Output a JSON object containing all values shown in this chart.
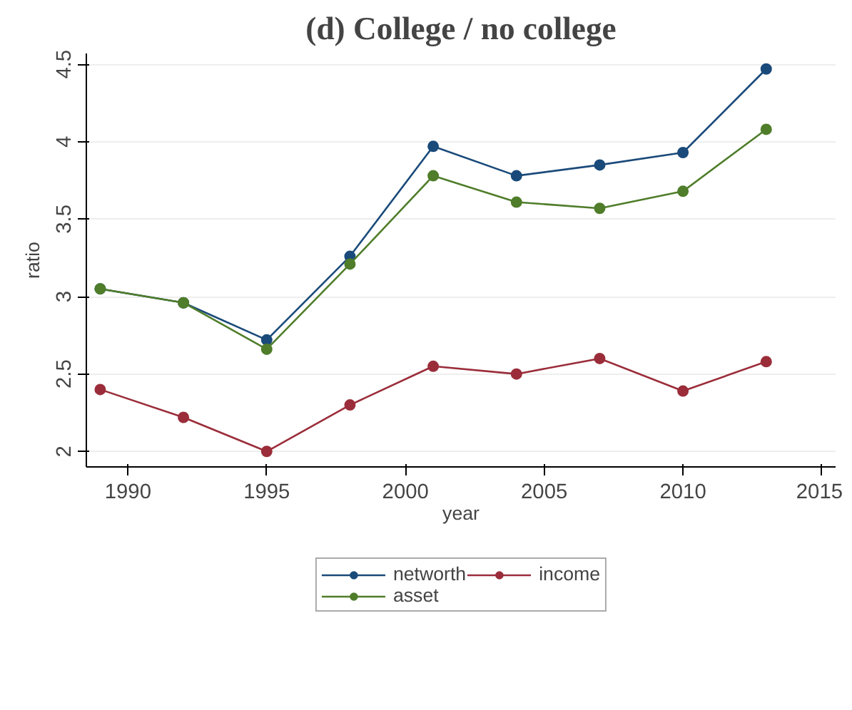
{
  "chart_data": {
    "type": "line",
    "title": "(d) College / no college",
    "xlabel": "year",
    "ylabel": "ratio",
    "x": [
      1989,
      1992,
      1995,
      1998,
      2001,
      2004,
      2007,
      2010,
      2013
    ],
    "series": [
      {
        "name": "networth",
        "color": "#1a4a7a",
        "values": [
          3.05,
          2.96,
          2.72,
          3.26,
          3.97,
          3.78,
          3.85,
          3.93,
          4.47
        ]
      },
      {
        "name": "income",
        "color": "#9b2d3a",
        "values": [
          2.4,
          2.22,
          2.0,
          2.3,
          2.55,
          2.5,
          2.6,
          2.39,
          2.58
        ]
      },
      {
        "name": "asset",
        "color": "#4f7d2a",
        "values": [
          3.05,
          2.96,
          2.66,
          3.21,
          3.78,
          3.61,
          3.57,
          3.68,
          4.08
        ]
      }
    ],
    "xlim": [
      1988.5,
      2015.5
    ],
    "ylim": [
      1.9,
      4.57
    ],
    "xticks": [
      1990,
      1995,
      2000,
      2005,
      2010,
      2015
    ],
    "yticks": [
      2,
      2.5,
      3,
      3.5,
      4,
      4.5
    ],
    "grid": "y",
    "legend": "bottom",
    "marker": "circle",
    "line_style": "solid"
  }
}
